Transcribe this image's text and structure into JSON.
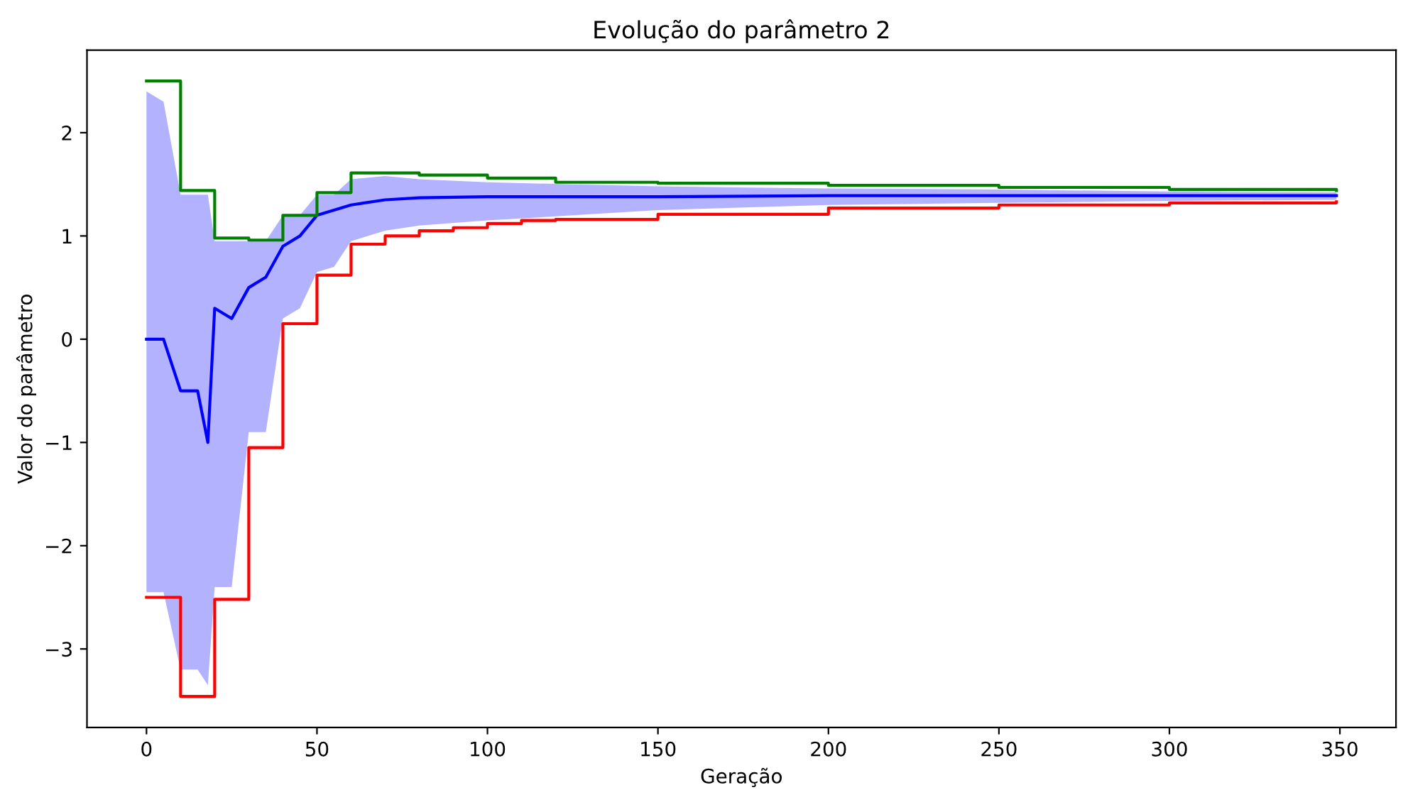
{
  "chart_data": {
    "type": "line",
    "title": "Evolução do parâmetro 2",
    "xlabel": "Geração",
    "ylabel": "Valor do parâmetro",
    "xlim": [
      -17.45,
      366.45
    ],
    "ylim": [
      -3.76,
      2.8
    ],
    "xticks": [
      0,
      50,
      100,
      150,
      200,
      250,
      300,
      350
    ],
    "yticks": [
      {
        "value": -3,
        "label": "−3"
      },
      {
        "value": -2,
        "label": "−2"
      },
      {
        "value": -1,
        "label": "−1"
      },
      0,
      1,
      2
    ],
    "grid": false,
    "series": [
      {
        "color": "#0000ff",
        "x": [
          0,
          5,
          10,
          15,
          18,
          20,
          25,
          30,
          35,
          40,
          45,
          50,
          55,
          60,
          70,
          80,
          100,
          150,
          200,
          250,
          300,
          349
        ],
        "values": [
          0,
          0,
          -0.5,
          -0.5,
          -1,
          0.3,
          0.2,
          0.5,
          0.6,
          0.9,
          1.0,
          1.2,
          1.25,
          1.3,
          1.35,
          1.37,
          1.38,
          1.38,
          1.39,
          1.39,
          1.39,
          1.39
        ],
        "lower": [
          -2.45,
          -2.45,
          -3.2,
          -3.2,
          -3.35,
          -2.4,
          -2.4,
          -0.9,
          -0.9,
          0.2,
          0.3,
          0.65,
          0.7,
          0.95,
          1.05,
          1.1,
          1.15,
          1.25,
          1.3,
          1.32,
          1.34,
          1.35
        ],
        "upper": [
          2.4,
          2.3,
          1.4,
          1.4,
          1.4,
          0.95,
          0.95,
          0.95,
          0.95,
          1.2,
          1.2,
          1.4,
          1.4,
          1.55,
          1.58,
          1.55,
          1.52,
          1.48,
          1.46,
          1.45,
          1.43,
          1.42
        ]
      },
      {
        "type": "step",
        "color": "#008000",
        "x": [
          0,
          10,
          20,
          30,
          40,
          50,
          60,
          80,
          100,
          120,
          150,
          200,
          250,
          300,
          349
        ],
        "values": [
          2.5,
          1.44,
          0.98,
          0.96,
          1.2,
          1.42,
          1.61,
          1.59,
          1.56,
          1.52,
          1.51,
          1.49,
          1.47,
          1.45,
          1.44
        ]
      },
      {
        "type": "step",
        "color": "#ff0000",
        "x": [
          0,
          10,
          20,
          30,
          40,
          50,
          60,
          70,
          80,
          90,
          100,
          110,
          120,
          150,
          200,
          250,
          300,
          349
        ],
        "values": [
          -2.5,
          -3.46,
          -2.52,
          -1.05,
          0.15,
          0.62,
          0.92,
          1.0,
          1.05,
          1.08,
          1.12,
          1.15,
          1.16,
          1.21,
          1.27,
          1.3,
          1.32,
          1.33
        ]
      }
    ]
  }
}
